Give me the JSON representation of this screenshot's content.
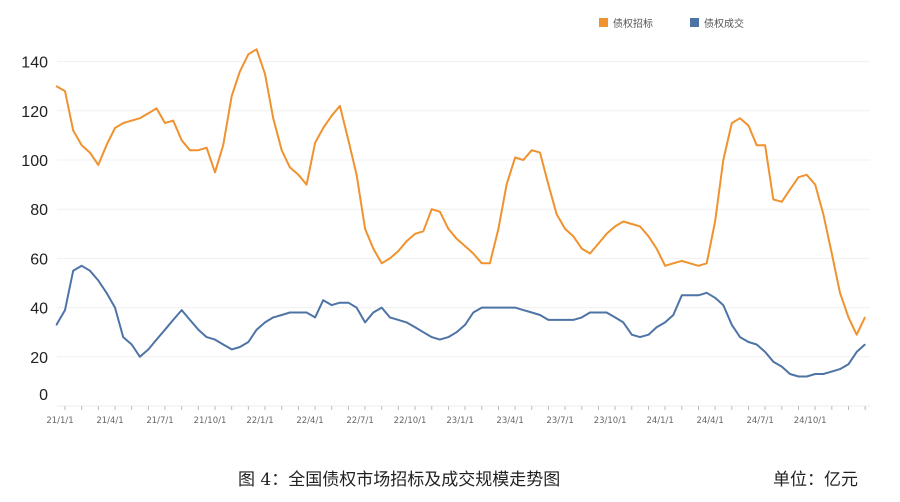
{
  "chart_data": {
    "type": "line",
    "title": "",
    "caption": "图 4：全国债权市场招标及成交规模走势图",
    "unit_label": "单位：亿元",
    "ylim": [
      0,
      150
    ],
    "yticks": [
      0,
      20,
      40,
      60,
      80,
      100,
      120,
      140
    ],
    "xtick_labels": [
      "21/1/1",
      "21/4/1",
      "21/7/1",
      "21/10/1",
      "22/1/1",
      "22/4/1",
      "22/7/1",
      "22/10/1",
      "23/1/1",
      "23/4/1",
      "23/7/1",
      "23/10/1",
      "24/1/1",
      "24/4/1",
      "24/7/1",
      "24/10/1"
    ],
    "xtick_dates": [
      "2021-01-01",
      "2021-04-01",
      "2021-07-01",
      "2021-10-01",
      "2022-01-01",
      "2022-04-01",
      "2022-07-01",
      "2022-10-01",
      "2023-01-01",
      "2023-04-01",
      "2023-07-01",
      "2023-10-01",
      "2024-01-01",
      "2024-04-01",
      "2024-07-01",
      "2024-10-01"
    ],
    "grid": true,
    "legend_placement": "top-right",
    "x": [
      "2020-12-16",
      "2021-01-01",
      "2021-01-16",
      "2021-02-01",
      "2021-02-16",
      "2021-03-01",
      "2021-03-16",
      "2021-04-01",
      "2021-04-16",
      "2021-05-01",
      "2021-05-16",
      "2021-06-01",
      "2021-06-16",
      "2021-07-01",
      "2021-07-16",
      "2021-08-01",
      "2021-08-16",
      "2021-09-01",
      "2021-09-16",
      "2021-10-01",
      "2021-10-16",
      "2021-11-01",
      "2021-11-16",
      "2021-12-01",
      "2021-12-16",
      "2022-01-01",
      "2022-01-16",
      "2022-02-01",
      "2022-02-16",
      "2022-03-01",
      "2022-03-16",
      "2022-04-01",
      "2022-04-16",
      "2022-05-01",
      "2022-05-16",
      "2022-06-01",
      "2022-06-16",
      "2022-07-01",
      "2022-07-16",
      "2022-08-01",
      "2022-08-16",
      "2022-09-01",
      "2022-09-16",
      "2022-10-01",
      "2022-10-16",
      "2022-11-01",
      "2022-11-16",
      "2022-12-01",
      "2022-12-16",
      "2023-01-01",
      "2023-01-16",
      "2023-02-01",
      "2023-02-16",
      "2023-03-01",
      "2023-03-16",
      "2023-04-01",
      "2023-04-16",
      "2023-05-01",
      "2023-05-16",
      "2023-06-01",
      "2023-06-16",
      "2023-07-01",
      "2023-07-16",
      "2023-08-01",
      "2023-08-16",
      "2023-09-01",
      "2023-09-16",
      "2023-10-01",
      "2023-10-16",
      "2023-11-01",
      "2023-11-16",
      "2023-12-01",
      "2023-12-16",
      "2024-01-01",
      "2024-01-16",
      "2024-02-01",
      "2024-02-16",
      "2024-03-01",
      "2024-03-16",
      "2024-04-01",
      "2024-04-16",
      "2024-05-01",
      "2024-05-16",
      "2024-06-01",
      "2024-06-16",
      "2024-07-01",
      "2024-07-16",
      "2024-08-01",
      "2024-08-16",
      "2024-09-01",
      "2024-09-16",
      "2024-10-01",
      "2024-10-16",
      "2024-11-01",
      "2024-11-16",
      "2024-12-01",
      "2024-12-16",
      "2024-12-31"
    ],
    "series": [
      {
        "name": "债权招标",
        "color": "#F0922E",
        "values": [
          130,
          128,
          112,
          106,
          103,
          98,
          106,
          113,
          115,
          116,
          117,
          119,
          121,
          115,
          116,
          108,
          104,
          104,
          105,
          95,
          106,
          126,
          136,
          143,
          145,
          135,
          117,
          104,
          97,
          94,
          90,
          107,
          113,
          118,
          122,
          108,
          94,
          72,
          64,
          58,
          60,
          63,
          67,
          70,
          71,
          80,
          79,
          72,
          68,
          65,
          62,
          58,
          58,
          72,
          90,
          101,
          100,
          104,
          103,
          90,
          78,
          72,
          69,
          64,
          62,
          66,
          70,
          73,
          75,
          74,
          73,
          69,
          64,
          57,
          58,
          59,
          58,
          57,
          58,
          75,
          100,
          115,
          117,
          114,
          106,
          106,
          84,
          83,
          88,
          93,
          94,
          90,
          78,
          62,
          46,
          36,
          29,
          36
        ]
      },
      {
        "name": "债权成交",
        "color": "#4E74A6",
        "values": [
          33,
          39,
          55,
          57,
          55,
          51,
          46,
          40,
          28,
          25,
          20,
          23,
          27,
          31,
          35,
          39,
          35,
          31,
          28,
          27,
          25,
          23,
          24,
          26,
          31,
          34,
          36,
          37,
          38,
          38,
          38,
          36,
          43,
          41,
          42,
          42,
          40,
          34,
          38,
          40,
          36,
          35,
          34,
          32,
          30,
          28,
          27,
          28,
          30,
          33,
          38,
          40,
          40,
          40,
          40,
          40,
          39,
          38,
          37,
          35,
          35,
          35,
          35,
          36,
          38,
          38,
          38,
          36,
          34,
          29,
          28,
          29,
          32,
          34,
          37,
          45,
          45,
          45,
          46,
          44,
          41,
          33,
          28,
          26,
          25,
          22,
          18,
          16,
          13,
          12,
          12,
          13,
          13,
          14,
          15,
          17,
          22,
          25
        ]
      }
    ]
  }
}
